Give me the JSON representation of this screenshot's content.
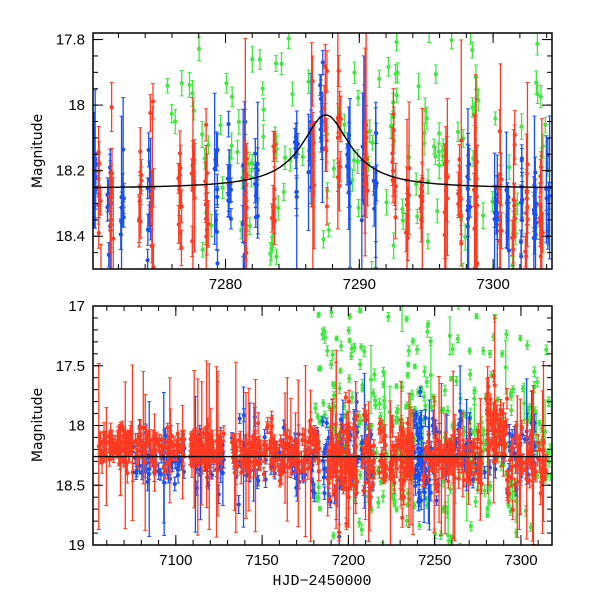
{
  "colors": {
    "blue": "#1a50f0",
    "red": "#ff3a22",
    "green": "#3ee83e",
    "model": "#000000"
  },
  "chart_data": [
    {
      "type": "scatter",
      "panel": "top",
      "title": "",
      "xlabel": "",
      "ylabel": "Magnitude",
      "xlim": [
        7270.1,
        7304.4
      ],
      "ylim": [
        17.78,
        18.5
      ],
      "y_inverted": true,
      "x_ticks": [
        7280,
        7290,
        7300
      ],
      "x_tick_labels": [
        "7280",
        "7290",
        "7300"
      ],
      "y_ticks": [
        17.8,
        18,
        18.2,
        18.4
      ],
      "y_tick_labels": [
        "17.8",
        "18",
        "18.2",
        "18.4"
      ],
      "model": {
        "type": "lorentzian",
        "baseline": 18.255,
        "amplitude": 0.225,
        "t0": 7287.5,
        "half_width": 2.2
      },
      "series": [
        {
          "name": "blue",
          "color_key": "blue",
          "nights": [
            7270.2,
            7271.3,
            7272.3,
            7274.3,
            7279.3,
            7280.3,
            7281.4,
            7282.3,
            7285.3,
            7286.3,
            7287.2,
            7289.2,
            7290.3,
            7291.2,
            7298.2,
            7300.2,
            7301.1,
            7302.1,
            7303.1,
            7304.1
          ],
          "per_night": 9,
          "sd": 0.09,
          "err": 0.03
        },
        {
          "name": "red",
          "color_key": "red",
          "nights": [
            7270.6,
            7271.5,
            7273.6,
            7274.5,
            7276.6,
            7277.6,
            7278.6,
            7281.5,
            7283.6,
            7286.5,
            7287.5,
            7288.5,
            7290.5,
            7292.6,
            7293.6,
            7294.6,
            7296.5,
            7297.5,
            7298.7,
            7300.5,
            7301.5,
            7302.5,
            7303.6
          ],
          "per_night": 9,
          "sd": 0.1,
          "err": 0.04
        },
        {
          "name": "green",
          "color_key": "green",
          "range": [
            7275.5,
            7304.4
          ],
          "count": 150,
          "mean": 18.15,
          "sd": 0.2,
          "err": 0.02
        }
      ]
    },
    {
      "type": "scatter",
      "panel": "bottom",
      "title": "",
      "xlabel": "HJD−2450000",
      "ylabel": "Magnitude",
      "xlim": [
        7052,
        7318
      ],
      "ylim": [
        17,
        19
      ],
      "y_inverted": true,
      "x_ticks": [
        7100,
        7150,
        7200,
        7250,
        7300
      ],
      "x_tick_labels": [
        "7100",
        "7150",
        "7200",
        "7250",
        "7300"
      ],
      "y_ticks": [
        17,
        17.5,
        18,
        18.5,
        19
      ],
      "y_tick_labels": [
        "17",
        "17.5",
        "18",
        "18.5",
        "19"
      ],
      "model": {
        "type": "constant",
        "value": 18.26
      },
      "series": [
        {
          "name": "blue",
          "color_key": "blue",
          "segments": [
            [
              7075,
              7105,
              18.3,
              0.1,
              60
            ],
            [
              7108,
              7128,
              18.3,
              0.1,
              40
            ],
            [
              7132,
              7182,
              18.3,
              0.15,
              70
            ],
            [
              7185,
              7215,
              18.25,
              0.2,
              60
            ],
            [
              7238,
              7250,
              18.25,
              0.2,
              60
            ],
            [
              7250,
              7310,
              18.2,
              0.15,
              70
            ]
          ],
          "err": 0.05
        },
        {
          "name": "red",
          "color_key": "red",
          "segments": [
            [
              7055,
              7105,
              18.17,
              0.08,
              160
            ],
            [
              7108,
              7128,
              18.17,
              0.08,
              90
            ],
            [
              7132,
              7183,
              18.22,
              0.1,
              180
            ],
            [
              7188,
              7215,
              18.3,
              0.18,
              120
            ],
            [
              7218,
              7238,
              18.27,
              0.14,
              90
            ],
            [
              7243,
              7278,
              18.27,
              0.1,
              120
            ],
            [
              7280,
              7292,
              18.05,
              0.15,
              60
            ],
            [
              7292,
              7315,
              18.32,
              0.15,
              70
            ]
          ],
          "err": 0.06
        },
        {
          "name": "green",
          "color_key": "green",
          "segments": [
            [
              7180,
              7240,
              18.0,
              0.5,
              180
            ],
            [
              7240,
              7318,
              18.1,
              0.5,
              180
            ]
          ],
          "err": 0.03
        }
      ]
    }
  ]
}
